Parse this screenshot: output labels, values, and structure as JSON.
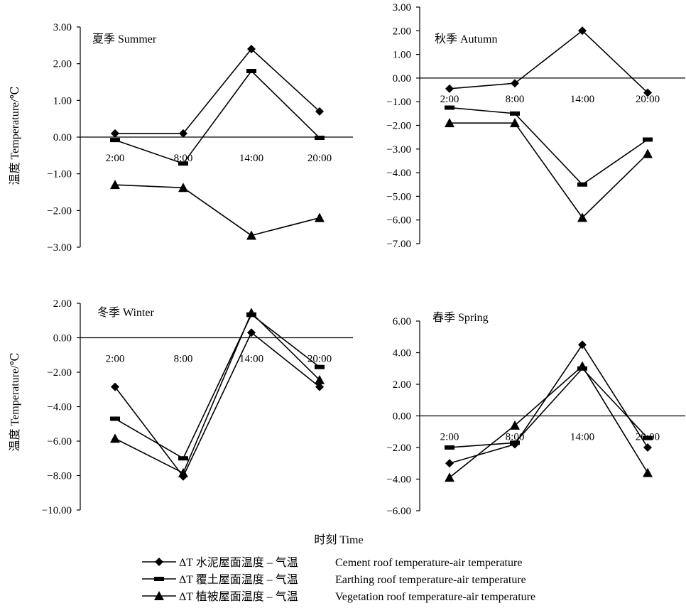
{
  "figure": {
    "xlabel": "时刻  Time",
    "ylabel": "温度  Temperature/℃"
  },
  "legend": [
    {
      "series": "Cement",
      "marker": "diamond",
      "label": "ΔT 水泥屋面温度 – 气温",
      "en": "Cement roof temperature-air temperature"
    },
    {
      "series": "Earthing",
      "marker": "bar",
      "label": "ΔT 覆土屋面温度 – 气温",
      "en": "Earthing roof temperature-air temperature"
    },
    {
      "series": "Vegetation",
      "marker": "triangle",
      "label": "ΔT 植被屋面温度 – 气温",
      "en": "Vegetation roof temperature-air temperature"
    }
  ],
  "chart_data": [
    {
      "type": "line",
      "title": "夏季  Summer",
      "categories": [
        "2:00",
        "8:00",
        "14:00",
        "20:00"
      ],
      "ylim": [
        -3,
        3
      ],
      "yticks": [
        "3.00",
        "2.00",
        "1.00",
        "0.00",
        "−1.00",
        "−2.00",
        "−3.00"
      ],
      "series": [
        {
          "name": "Cement",
          "values": [
            0.1,
            0.1,
            2.4,
            0.7
          ]
        },
        {
          "name": "Earthing",
          "values": [
            -0.08,
            -0.72,
            1.8,
            -0.02
          ]
        },
        {
          "name": "Vegetation",
          "values": [
            -1.3,
            -1.38,
            -2.68,
            -2.2
          ]
        }
      ]
    },
    {
      "type": "line",
      "title": "秋季  Autumn",
      "categories": [
        "2:00",
        "8:00",
        "14:00",
        "20:00"
      ],
      "ylim": [
        -7,
        3
      ],
      "yticks": [
        "3.00",
        "2.00",
        "1.00",
        "0.00",
        "−1.00",
        "−2.00",
        "−3.00",
        "−4.00",
        "−5.00",
        "−6.00",
        "−7.00"
      ],
      "series": [
        {
          "name": "Cement",
          "values": [
            -0.45,
            -0.22,
            2.0,
            -0.62
          ]
        },
        {
          "name": "Earthing",
          "values": [
            -1.25,
            -1.5,
            -4.5,
            -2.6
          ]
        },
        {
          "name": "Vegetation",
          "values": [
            -1.9,
            -1.9,
            -5.9,
            -3.2
          ]
        }
      ]
    },
    {
      "type": "line",
      "title": "冬季  Winter",
      "categories": [
        "2:00",
        "8:00",
        "14:00",
        "20:00"
      ],
      "ylim": [
        -10,
        2
      ],
      "yticks": [
        "2.00",
        "0.00",
        "−2.00",
        "−4.00",
        "−6.00",
        "−8.00",
        "−10.00"
      ],
      "series": [
        {
          "name": "Cement",
          "values": [
            -2.85,
            -8.05,
            0.3,
            -2.85
          ]
        },
        {
          "name": "Earthing",
          "values": [
            -4.7,
            -7.0,
            1.35,
            -1.7
          ]
        },
        {
          "name": "Vegetation",
          "values": [
            -5.85,
            -7.85,
            1.45,
            -2.45
          ]
        }
      ]
    },
    {
      "type": "line",
      "title": "春季  Spring",
      "categories": [
        "2:00",
        "8:00",
        "14:00",
        "20:00"
      ],
      "ylim": [
        -6,
        6
      ],
      "yticks": [
        "6.00",
        "4.00",
        "2.00",
        "0.00",
        "−2.00",
        "−4.00",
        "−6.00"
      ],
      "series": [
        {
          "name": "Cement",
          "values": [
            -3.0,
            -1.8,
            4.5,
            -2.0
          ]
        },
        {
          "name": "Earthing",
          "values": [
            -2.0,
            -1.7,
            3.0,
            -1.4
          ]
        },
        {
          "name": "Vegetation",
          "values": [
            -3.9,
            -0.6,
            3.15,
            -3.6
          ]
        }
      ]
    }
  ]
}
